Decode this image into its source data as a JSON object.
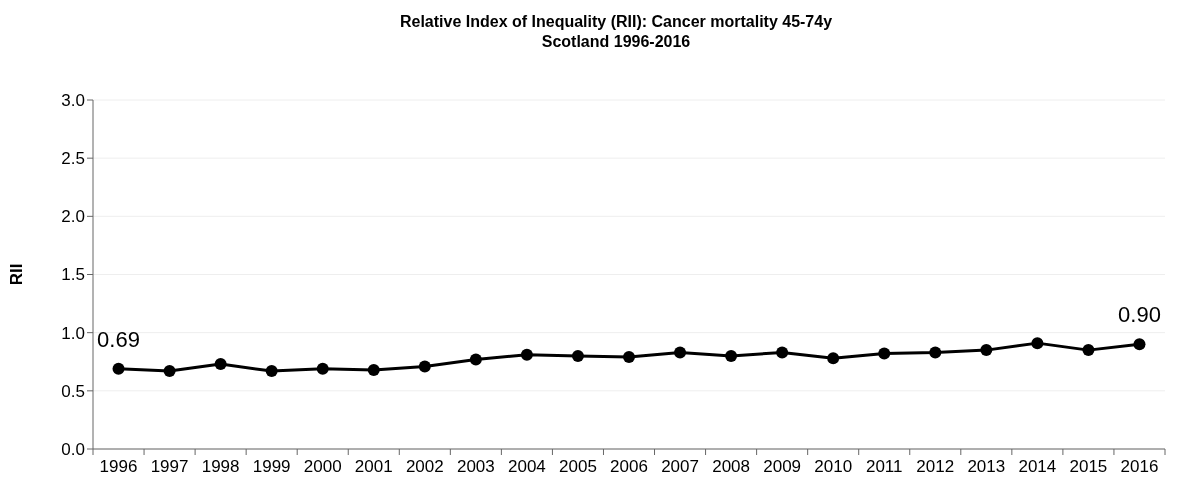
{
  "chart_data": {
    "type": "line",
    "title": "Relative Index of Inequality (RII): Cancer mortality 45-74y\nScotland 1996-2016",
    "ylabel": "RII",
    "categories": [
      "1996",
      "1997",
      "1998",
      "1999",
      "2000",
      "2001",
      "2002",
      "2003",
      "2004",
      "2005",
      "2006",
      "2007",
      "2008",
      "2009",
      "2010",
      "2011",
      "2012",
      "2013",
      "2014",
      "2015",
      "2016"
    ],
    "series": [
      {
        "color": "#000000",
        "values": [
          0.69,
          0.67,
          0.73,
          0.67,
          0.69,
          0.68,
          0.71,
          0.77,
          0.81,
          0.8,
          0.79,
          0.83,
          0.8,
          0.83,
          0.78,
          0.82,
          0.83,
          0.85,
          0.91,
          0.85,
          0.9
        ],
        "value_labels": [
          "0.69",
          null,
          null,
          null,
          null,
          null,
          null,
          null,
          null,
          null,
          null,
          null,
          null,
          null,
          null,
          null,
          null,
          null,
          null,
          null,
          "0.90"
        ]
      }
    ],
    "ylim": [
      0,
      3
    ],
    "yticks": [
      {
        "value": 0,
        "label": "0.0"
      },
      {
        "value": 0.5,
        "label": "0.5"
      },
      {
        "value": 1,
        "label": "1.0"
      },
      {
        "value": 1.5,
        "label": "1.5"
      },
      {
        "value": 2,
        "label": "2.0"
      },
      {
        "value": 2.5,
        "label": "2.5"
      },
      {
        "value": 3,
        "label": "3.0"
      }
    ],
    "grid": "y",
    "marker": "circle",
    "line_style": "solid"
  }
}
